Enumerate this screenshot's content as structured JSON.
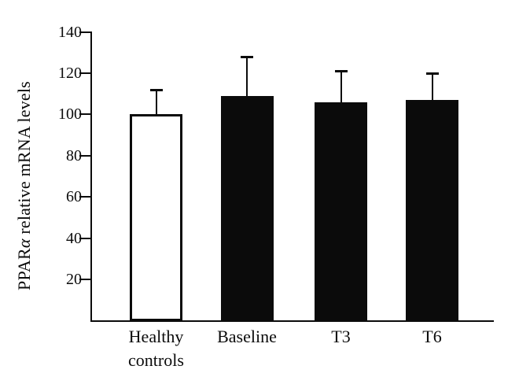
{
  "chart_data": {
    "type": "bar",
    "title": "",
    "xlabel": "",
    "ylabel": "PPARα relative mRNA levels",
    "ylabel_parts": {
      "prefix": "PPAR",
      "alpha": "α",
      "rest": " relative mRNA levels"
    },
    "categories": [
      "Healthy controls",
      "Baseline",
      "T3",
      "T6"
    ],
    "category_display": [
      "Healthy\ncontrols",
      "Baseline",
      "T3",
      "T6"
    ],
    "values": [
      100,
      109,
      106,
      107
    ],
    "errors": [
      12,
      19,
      15,
      13
    ],
    "error_direction": "upper-only",
    "yticks": [
      20,
      40,
      60,
      80,
      100,
      120,
      140
    ],
    "ylim": [
      0,
      140
    ],
    "grid": false,
    "legend": null,
    "bar_fills": [
      "#ffffff",
      "#0b0b0b",
      "#0b0b0b",
      "#0b0b0b"
    ],
    "bar_stroke": "#0b0b0b",
    "background": "#ffffff"
  }
}
